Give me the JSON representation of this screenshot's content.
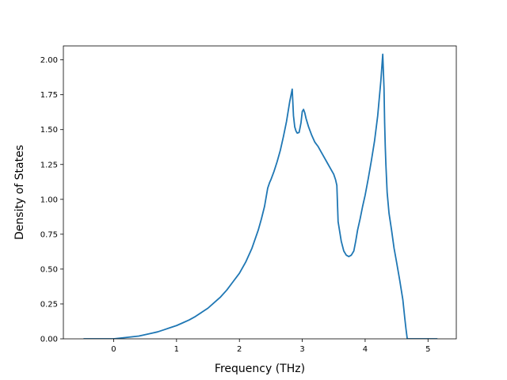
{
  "chart_data": {
    "type": "line",
    "title": "",
    "xlabel": "Frequency (THz)",
    "ylabel": "Density of States",
    "xlim": [
      -0.8,
      5.45
    ],
    "ylim": [
      0.0,
      2.1
    ],
    "grid": false,
    "legend": "none",
    "xticks": [
      0,
      1,
      2,
      3,
      4,
      5
    ],
    "xtick_labels": [
      "0",
      "1",
      "2",
      "3",
      "4",
      "5"
    ],
    "yticks": [
      0.0,
      0.25,
      0.5,
      0.75,
      1.0,
      1.25,
      1.5,
      1.75,
      2.0
    ],
    "ytick_labels": [
      "0.00",
      "0.25",
      "0.50",
      "0.75",
      "1.00",
      "1.25",
      "1.50",
      "1.75",
      "2.00"
    ],
    "series": [
      {
        "color": "#1f77b4",
        "x": [
          -0.48,
          -0.2,
          0.0,
          0.1,
          0.2,
          0.3,
          0.4,
          0.5,
          0.6,
          0.7,
          0.8,
          0.9,
          1.0,
          1.1,
          1.2,
          1.3,
          1.4,
          1.5,
          1.6,
          1.7,
          1.8,
          1.9,
          2.0,
          2.1,
          2.2,
          2.3,
          2.35,
          2.4,
          2.45,
          2.48,
          2.5,
          2.55,
          2.6,
          2.65,
          2.7,
          2.75,
          2.8,
          2.84,
          2.86,
          2.88,
          2.9,
          2.92,
          2.95,
          2.98,
          3.0,
          3.02,
          3.04,
          3.06,
          3.1,
          3.15,
          3.2,
          3.25,
          3.3,
          3.35,
          3.4,
          3.45,
          3.5,
          3.53,
          3.55,
          3.57,
          3.62,
          3.66,
          3.7,
          3.74,
          3.78,
          3.82,
          3.85,
          3.88,
          3.92,
          3.96,
          4.0,
          4.05,
          4.1,
          4.15,
          4.2,
          4.25,
          4.28,
          4.3,
          4.31,
          4.32,
          4.33,
          4.35,
          4.38,
          4.42,
          4.46,
          4.5,
          4.55,
          4.6,
          4.63,
          4.65,
          4.67,
          4.68,
          4.72,
          4.8,
          5.0,
          5.15
        ],
        "y": [
          0.0,
          0.0,
          0.0,
          0.005,
          0.01,
          0.015,
          0.02,
          0.03,
          0.04,
          0.05,
          0.065,
          0.08,
          0.095,
          0.115,
          0.135,
          0.16,
          0.19,
          0.22,
          0.26,
          0.3,
          0.35,
          0.41,
          0.47,
          0.55,
          0.65,
          0.78,
          0.86,
          0.95,
          1.08,
          1.12,
          1.14,
          1.2,
          1.27,
          1.35,
          1.45,
          1.56,
          1.7,
          1.79,
          1.6,
          1.52,
          1.49,
          1.475,
          1.48,
          1.55,
          1.63,
          1.645,
          1.62,
          1.58,
          1.52,
          1.46,
          1.41,
          1.38,
          1.34,
          1.3,
          1.26,
          1.22,
          1.18,
          1.14,
          1.1,
          0.84,
          0.7,
          0.63,
          0.6,
          0.59,
          0.6,
          0.63,
          0.7,
          0.78,
          0.86,
          0.95,
          1.03,
          1.15,
          1.28,
          1.42,
          1.6,
          1.85,
          2.04,
          1.8,
          1.55,
          1.38,
          1.25,
          1.05,
          0.9,
          0.78,
          0.65,
          0.55,
          0.42,
          0.28,
          0.15,
          0.07,
          0.0,
          0.0,
          0.0,
          0.0,
          0.0,
          0.0
        ]
      }
    ]
  }
}
